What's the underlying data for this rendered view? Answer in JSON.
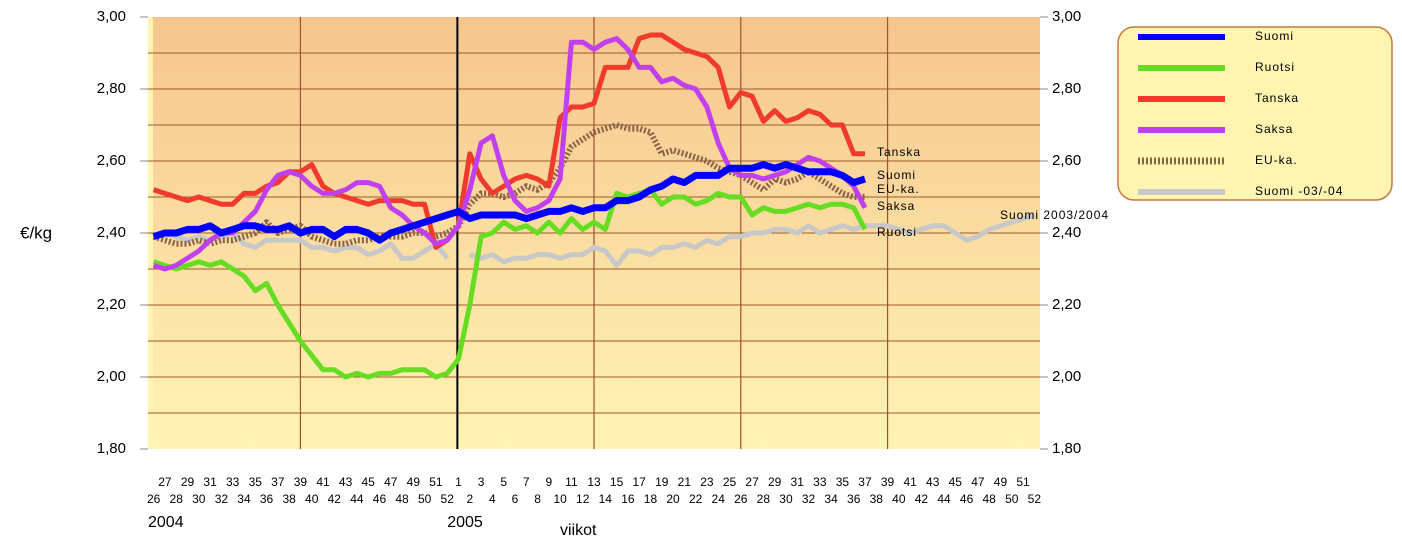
{
  "chart_data": {
    "type": "line",
    "ylabel": "€/kg",
    "xlabel": "viikot",
    "year_labels": [
      "2004",
      "2005"
    ],
    "categories": [
      "26",
      "27",
      "28",
      "29",
      "30",
      "31",
      "32",
      "33",
      "34",
      "35",
      "36",
      "37",
      "38",
      "39",
      "40",
      "41",
      "42",
      "43",
      "44",
      "45",
      "46",
      "47",
      "48",
      "49",
      "50",
      "51",
      "52",
      "1",
      "2",
      "3",
      "4",
      "5",
      "6",
      "7",
      "8",
      "9",
      "10",
      "11",
      "12",
      "13",
      "14",
      "15",
      "16",
      "17",
      "18",
      "19",
      "20",
      "21",
      "22",
      "23",
      "24",
      "25",
      "26",
      "27",
      "28",
      "29",
      "30",
      "31",
      "32",
      "33",
      "34",
      "35",
      "36",
      "37",
      "38",
      "39",
      "40",
      "41",
      "42",
      "43",
      "44",
      "45",
      "46",
      "47",
      "48",
      "49",
      "50",
      "51",
      "52"
    ],
    "ylim": [
      1.8,
      3.0
    ],
    "yticks": [
      {
        "value": 1.8,
        "label": "1,80"
      },
      {
        "value": 2.0,
        "label": "2,00"
      },
      {
        "value": 2.2,
        "label": "2,20"
      },
      {
        "value": 2.4,
        "label": "2,40"
      },
      {
        "value": 2.6,
        "label": "2,60"
      },
      {
        "value": 2.8,
        "label": "2,80"
      },
      {
        "value": 3.0,
        "label": "3,00"
      }
    ],
    "y2lim": [
      1.8,
      3.0
    ],
    "y2ticks": [
      {
        "value": 1.8,
        "label": "1,80"
      },
      {
        "value": 2.0,
        "label": "2,00"
      },
      {
        "value": 2.2,
        "label": "2,20"
      },
      {
        "value": 2.4,
        "label": "2,40"
      },
      {
        "value": 2.6,
        "label": "2,60"
      },
      {
        "value": 2.8,
        "label": "2,80"
      },
      {
        "value": 3.0,
        "label": "3,00"
      }
    ],
    "grid": [
      1.9,
      2.0,
      2.1,
      2.2,
      2.3,
      2.4,
      2.5,
      2.6,
      2.7,
      2.8,
      2.9
    ],
    "legend": "right",
    "series": [
      {
        "name": "Suomi",
        "color": "#0000ff",
        "values": [
          2.39,
          2.4,
          2.4,
          2.41,
          2.41,
          2.42,
          2.4,
          2.41,
          2.42,
          2.42,
          2.41,
          2.41,
          2.42,
          2.4,
          2.41,
          2.41,
          2.39,
          2.41,
          2.41,
          2.4,
          2.38,
          2.4,
          2.41,
          2.42,
          2.43,
          2.44,
          2.45,
          2.46,
          2.44,
          2.45,
          2.45,
          2.45,
          2.45,
          2.44,
          2.45,
          2.46,
          2.46,
          2.47,
          2.46,
          2.47,
          2.47,
          2.49,
          2.49,
          2.5,
          2.52,
          2.53,
          2.55,
          2.54,
          2.56,
          2.56,
          2.56,
          2.58,
          2.58,
          2.58,
          2.59,
          2.58,
          2.59,
          2.58,
          2.57,
          2.57,
          2.57,
          2.56,
          2.54,
          2.55,
          null,
          null,
          null,
          null,
          null,
          null,
          null,
          null,
          null,
          null,
          null,
          null,
          null,
          null,
          null
        ]
      },
      {
        "name": "Ruotsi",
        "color": "#66dd22",
        "values": [
          2.32,
          2.31,
          2.3,
          2.31,
          2.32,
          2.31,
          2.32,
          2.3,
          2.28,
          2.24,
          2.26,
          2.2,
          2.15,
          2.1,
          2.06,
          2.02,
          2.02,
          2.0,
          2.01,
          2.0,
          2.01,
          2.01,
          2.02,
          2.02,
          2.02,
          2.0,
          2.01,
          2.05,
          2.2,
          2.39,
          2.4,
          2.43,
          2.41,
          2.42,
          2.4,
          2.43,
          2.4,
          2.44,
          2.41,
          2.43,
          2.41,
          2.51,
          2.5,
          2.51,
          2.52,
          2.48,
          2.5,
          2.5,
          2.48,
          2.49,
          2.51,
          2.5,
          2.5,
          2.45,
          2.47,
          2.46,
          2.46,
          2.47,
          2.48,
          2.47,
          2.48,
          2.48,
          2.47,
          2.41,
          null,
          null,
          null,
          null,
          null,
          null,
          null,
          null,
          null,
          null,
          null,
          null,
          null,
          null,
          null
        ]
      },
      {
        "name": "Tanska",
        "color": "#f03a2c",
        "values": [
          2.52,
          2.51,
          2.5,
          2.49,
          2.5,
          2.49,
          2.48,
          2.48,
          2.51,
          2.51,
          2.53,
          2.54,
          2.57,
          2.57,
          2.59,
          2.53,
          2.51,
          2.5,
          2.49,
          2.48,
          2.49,
          2.49,
          2.49,
          2.48,
          2.48,
          2.36,
          2.38,
          2.42,
          2.62,
          2.55,
          2.51,
          2.53,
          2.55,
          2.56,
          2.55,
          2.53,
          2.72,
          2.75,
          2.75,
          2.76,
          2.86,
          2.86,
          2.86,
          2.94,
          2.95,
          2.95,
          2.93,
          2.91,
          2.9,
          2.89,
          2.86,
          2.75,
          2.79,
          2.78,
          2.71,
          2.74,
          2.71,
          2.72,
          2.74,
          2.73,
          2.7,
          2.7,
          2.62,
          2.62,
          null,
          null,
          null,
          null,
          null,
          null,
          null,
          null,
          null,
          null,
          null,
          null,
          null,
          null,
          null
        ]
      },
      {
        "name": "Saksa",
        "color": "#c040f0",
        "values": [
          2.31,
          2.3,
          2.31,
          2.33,
          2.35,
          2.38,
          2.4,
          2.4,
          2.43,
          2.46,
          2.52,
          2.56,
          2.57,
          2.56,
          2.53,
          2.51,
          2.51,
          2.52,
          2.54,
          2.54,
          2.53,
          2.47,
          2.45,
          2.42,
          2.4,
          2.37,
          2.38,
          2.42,
          2.52,
          2.65,
          2.67,
          2.56,
          2.49,
          2.46,
          2.47,
          2.49,
          2.55,
          2.93,
          2.93,
          2.91,
          2.93,
          2.94,
          2.91,
          2.86,
          2.86,
          2.82,
          2.83,
          2.81,
          2.8,
          2.75,
          2.65,
          2.58,
          2.56,
          2.56,
          2.55,
          2.56,
          2.57,
          2.59,
          2.61,
          2.6,
          2.58,
          2.56,
          2.53,
          2.47,
          null,
          null,
          null,
          null,
          null,
          null,
          null,
          null,
          null,
          null,
          null,
          null,
          null,
          null,
          null
        ]
      },
      {
        "name": "EU-ka.",
        "color": "#8b6347",
        "dashed": true,
        "values": [
          2.39,
          2.38,
          2.37,
          2.37,
          2.38,
          2.37,
          2.38,
          2.38,
          2.39,
          2.4,
          2.43,
          2.4,
          2.41,
          2.42,
          2.39,
          2.38,
          2.37,
          2.37,
          2.38,
          2.38,
          2.39,
          2.39,
          2.39,
          2.4,
          2.4,
          2.39,
          2.4,
          2.42,
          2.48,
          2.51,
          2.51,
          2.5,
          2.51,
          2.53,
          2.52,
          2.54,
          2.58,
          2.64,
          2.66,
          2.68,
          2.69,
          2.7,
          2.69,
          2.69,
          2.68,
          2.62,
          2.63,
          2.62,
          2.61,
          2.6,
          2.58,
          2.57,
          2.56,
          2.54,
          2.52,
          2.55,
          2.54,
          2.55,
          2.57,
          2.55,
          2.53,
          2.51,
          2.5,
          2.5,
          null,
          null,
          null,
          null,
          null,
          null,
          null,
          null,
          null,
          null,
          null,
          null,
          null,
          null,
          null
        ]
      },
      {
        "name": "Suomi -03/-04",
        "color": "#c8c8c8",
        "values": [
          2.39,
          2.4,
          2.39,
          2.38,
          2.39,
          2.38,
          2.39,
          2.4,
          2.37,
          2.36,
          2.38,
          2.38,
          2.38,
          2.38,
          2.36,
          2.36,
          2.35,
          2.36,
          2.36,
          2.34,
          2.35,
          2.37,
          2.33,
          2.33,
          2.35,
          2.37,
          2.33,
          null,
          2.34,
          2.33,
          2.34,
          2.32,
          2.33,
          2.33,
          2.34,
          2.34,
          2.33,
          2.34,
          2.34,
          2.36,
          2.35,
          2.31,
          2.35,
          2.35,
          2.34,
          2.36,
          2.36,
          2.37,
          2.36,
          2.38,
          2.37,
          2.39,
          2.39,
          2.4,
          2.4,
          2.41,
          2.41,
          2.4,
          2.42,
          2.4,
          2.41,
          2.42,
          2.41,
          2.42,
          2.42,
          2.42,
          2.41,
          2.4,
          2.41,
          2.42,
          2.42,
          2.4,
          2.38,
          2.39,
          2.41,
          2.42,
          2.43,
          2.44,
          2.45
        ]
      }
    ],
    "annotations": [
      "Suomi",
      "Ruotsi",
      "Tanska",
      "Saksa",
      "EU-ka.",
      "Suomi 2003/2004"
    ]
  }
}
